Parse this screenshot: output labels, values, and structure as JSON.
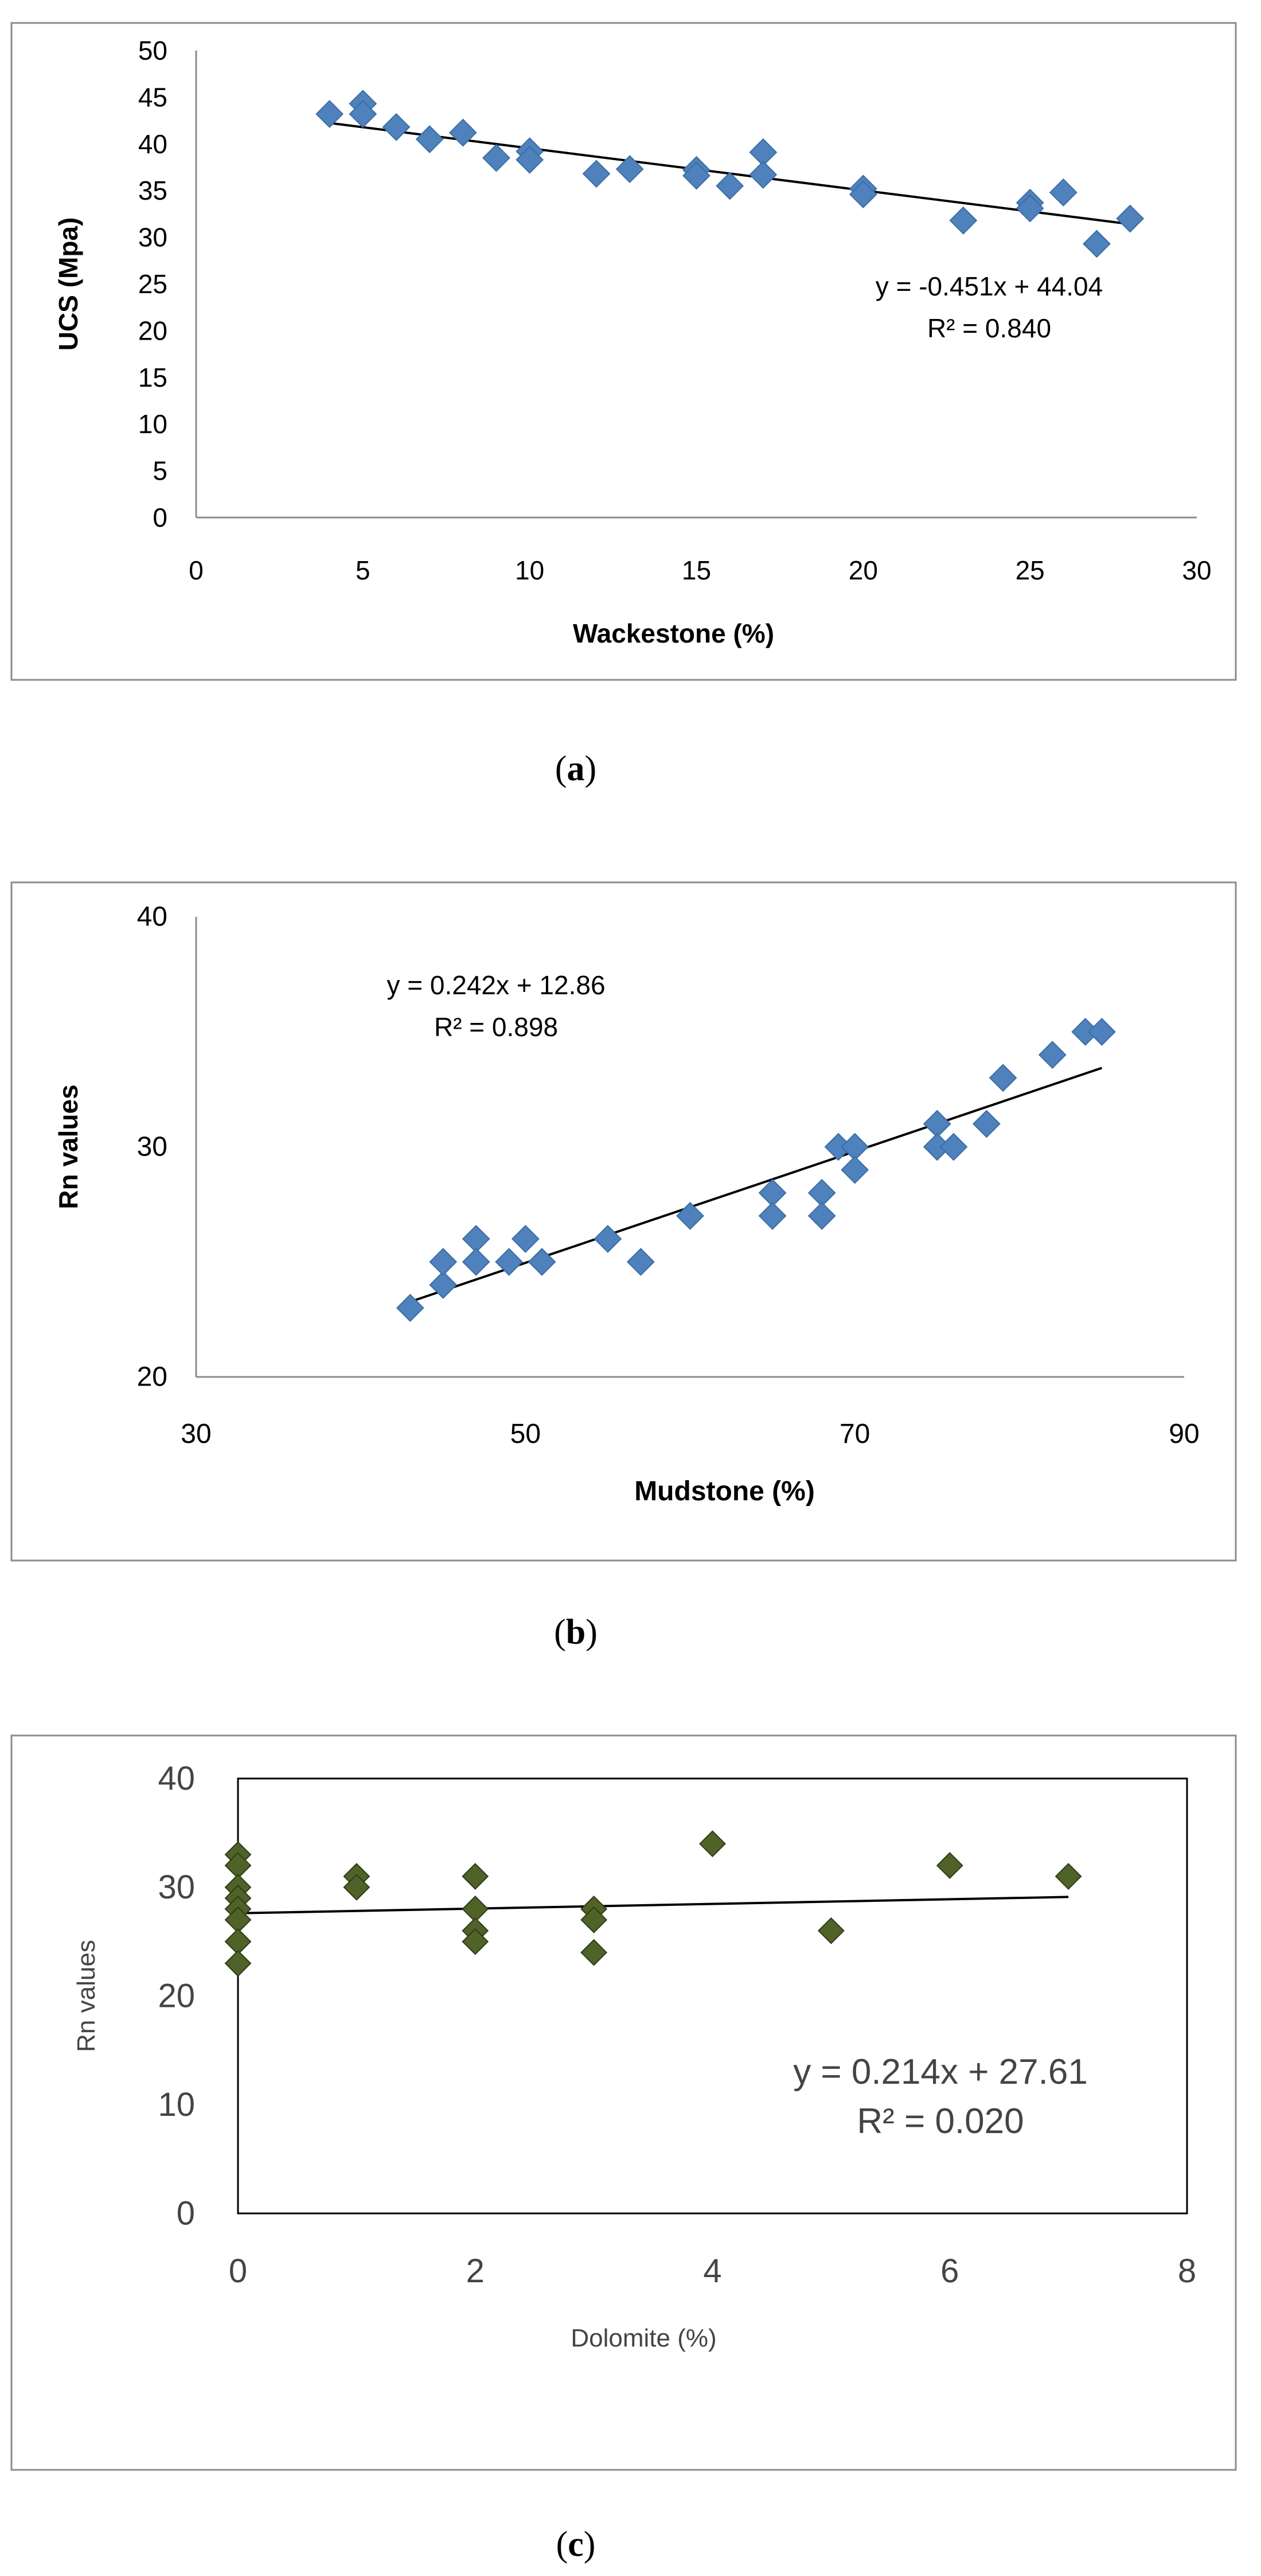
{
  "chart_data": [
    {
      "type": "scatter",
      "xlabel": "Wackestone (%)",
      "ylabel": "UCS (Mpa)",
      "xlim": [
        0,
        30
      ],
      "ylim": [
        0,
        50
      ],
      "xticks": [
        0,
        5,
        10,
        15,
        20,
        25,
        30
      ],
      "yticks": [
        0,
        5,
        10,
        15,
        20,
        25,
        30,
        35,
        40,
        45,
        50
      ],
      "marker_color": "#4f81bd",
      "trendline": {
        "slope": -0.451,
        "intercept": 44.04,
        "x_range": [
          4,
          28
        ]
      },
      "equation": "y = -0.451x + 44.04",
      "r2": "R² = 0.840",
      "caption_label": "a",
      "points": [
        [
          4,
          43.2
        ],
        [
          5,
          44.3
        ],
        [
          5,
          43.2
        ],
        [
          6,
          41.8
        ],
        [
          7,
          40.5
        ],
        [
          8,
          41.2
        ],
        [
          9,
          38.5
        ],
        [
          10,
          39.2
        ],
        [
          10,
          38.3
        ],
        [
          12,
          36.8
        ],
        [
          13,
          37.3
        ],
        [
          15,
          37.2
        ],
        [
          15,
          36.6
        ],
        [
          16,
          35.5
        ],
        [
          17,
          39.1
        ],
        [
          17,
          36.7
        ],
        [
          20,
          35.2
        ],
        [
          20,
          34.6
        ],
        [
          23,
          31.8
        ],
        [
          25,
          33.7
        ],
        [
          25,
          33.1
        ],
        [
          26,
          34.8
        ],
        [
          27,
          29.3
        ],
        [
          28,
          32.0
        ]
      ]
    },
    {
      "type": "scatter",
      "xlabel": "Mudstone (%)",
      "ylabel": "Rn values",
      "xlim": [
        30,
        90
      ],
      "ylim": [
        20,
        40
      ],
      "xticks": [
        30,
        50,
        70,
        90
      ],
      "yticks": [
        20,
        30,
        40
      ],
      "marker_color": "#4f81bd",
      "trendline": {
        "slope": 0.242,
        "intercept": 12.86,
        "x_range": [
          43,
          85
        ]
      },
      "equation": "y = 0.242x + 12.86",
      "r2": "R² = 0.898",
      "caption_label": "b",
      "points": [
        [
          43,
          23
        ],
        [
          45,
          24
        ],
        [
          45,
          25
        ],
        [
          47,
          26
        ],
        [
          47,
          25
        ],
        [
          49,
          25
        ],
        [
          50,
          26
        ],
        [
          51,
          25
        ],
        [
          55,
          26
        ],
        [
          57,
          25
        ],
        [
          60,
          27
        ],
        [
          65,
          28
        ],
        [
          65,
          27
        ],
        [
          68,
          28
        ],
        [
          68,
          27
        ],
        [
          69,
          30
        ],
        [
          70,
          30
        ],
        [
          70,
          29
        ],
        [
          75,
          31
        ],
        [
          75,
          30
        ],
        [
          76,
          30
        ],
        [
          78,
          31
        ],
        [
          79,
          33
        ],
        [
          82,
          34
        ],
        [
          84,
          35
        ],
        [
          85,
          35
        ]
      ]
    },
    {
      "type": "scatter",
      "xlabel": "Dolomite (%)",
      "ylabel": "Rn values",
      "xlim": [
        0,
        8
      ],
      "ylim": [
        0,
        40
      ],
      "xticks": [
        0,
        2,
        4,
        6,
        8
      ],
      "yticks": [
        0,
        10,
        20,
        30,
        40
      ],
      "marker_color": "#4f6228",
      "trendline": {
        "slope": 0.214,
        "intercept": 27.61,
        "x_range": [
          0,
          7
        ]
      },
      "equation": "y = 0.214x + 27.61",
      "r2": "R² = 0.020",
      "caption_label": "c",
      "points": [
        [
          0,
          33
        ],
        [
          0,
          32
        ],
        [
          0,
          30
        ],
        [
          0,
          29
        ],
        [
          0,
          28
        ],
        [
          0,
          27
        ],
        [
          0,
          25
        ],
        [
          0,
          23
        ],
        [
          1,
          31
        ],
        [
          1,
          30
        ],
        [
          2,
          31
        ],
        [
          2,
          28
        ],
        [
          2,
          26
        ],
        [
          2,
          25
        ],
        [
          3,
          28
        ],
        [
          3,
          27
        ],
        [
          3,
          24
        ],
        [
          4,
          34
        ],
        [
          5,
          26
        ],
        [
          6,
          32
        ],
        [
          7,
          31
        ]
      ]
    }
  ]
}
